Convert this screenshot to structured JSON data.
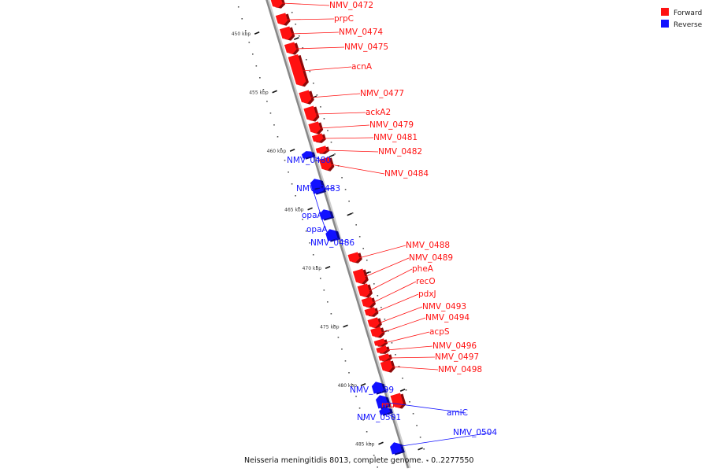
{
  "legend": {
    "items": [
      {
        "label": "Forward",
        "color": "#ff1111"
      },
      {
        "label": "Reverse",
        "color": "#1111ff"
      }
    ]
  },
  "caption": "Neisseria meningitidis 8013, complete genome. - 0..2277550",
  "colors": {
    "forward": "#ff1111",
    "reverse": "#1111ff",
    "backbone": "#888888"
  },
  "ticks": [
    {
      "kbp": 450,
      "label": "450 kbp"
    },
    {
      "kbp": 455,
      "label": "455 kbp"
    },
    {
      "kbp": 460,
      "label": "460 kbp"
    },
    {
      "kbp": 465,
      "label": "465 kbp"
    },
    {
      "kbp": 470,
      "label": "470 kbp"
    },
    {
      "kbp": 475,
      "label": "475 kbp"
    },
    {
      "kbp": 480,
      "label": "480 kbp"
    },
    {
      "kbp": 485,
      "label": "485 kbp"
    }
  ],
  "genes": [
    {
      "name": "NMV_0472",
      "strand": "forward"
    },
    {
      "name": "prpC",
      "strand": "forward"
    },
    {
      "name": "NMV_0474",
      "strand": "forward"
    },
    {
      "name": "NMV_0475",
      "strand": "forward"
    },
    {
      "name": "acnA",
      "strand": "forward"
    },
    {
      "name": "NMV_0477",
      "strand": "forward"
    },
    {
      "name": "ackA2",
      "strand": "forward"
    },
    {
      "name": "NMV_0479",
      "strand": "forward"
    },
    {
      "name": "NMV_0481",
      "strand": "forward"
    },
    {
      "name": "NMV_0482",
      "strand": "forward"
    },
    {
      "name": "NMV_0480",
      "strand": "reverse"
    },
    {
      "name": "NMV_0484",
      "strand": "forward"
    },
    {
      "name": "NMV_0483",
      "strand": "reverse"
    },
    {
      "name": "opaA",
      "strand": "reverse"
    },
    {
      "name": "opaA",
      "strand": "reverse"
    },
    {
      "name": "NMV_0486",
      "strand": "reverse"
    },
    {
      "name": "NMV_0488",
      "strand": "forward"
    },
    {
      "name": "NMV_0489",
      "strand": "forward"
    },
    {
      "name": "pheA",
      "strand": "forward"
    },
    {
      "name": "recO",
      "strand": "forward"
    },
    {
      "name": "pdxJ",
      "strand": "forward"
    },
    {
      "name": "NMV_0493",
      "strand": "forward"
    },
    {
      "name": "NMV_0494",
      "strand": "forward"
    },
    {
      "name": "acpS",
      "strand": "forward"
    },
    {
      "name": "NMV_0496",
      "strand": "forward"
    },
    {
      "name": "NMV_0497",
      "strand": "forward"
    },
    {
      "name": "NMV_0498",
      "strand": "forward"
    },
    {
      "name": "NMV_0499",
      "strand": "reverse"
    },
    {
      "name": "murI",
      "strand": "forward"
    },
    {
      "name": "amiC",
      "strand": "reverse"
    },
    {
      "name": "NMV_0501",
      "strand": "reverse"
    },
    {
      "name": "NMV_0504",
      "strand": "reverse"
    }
  ]
}
